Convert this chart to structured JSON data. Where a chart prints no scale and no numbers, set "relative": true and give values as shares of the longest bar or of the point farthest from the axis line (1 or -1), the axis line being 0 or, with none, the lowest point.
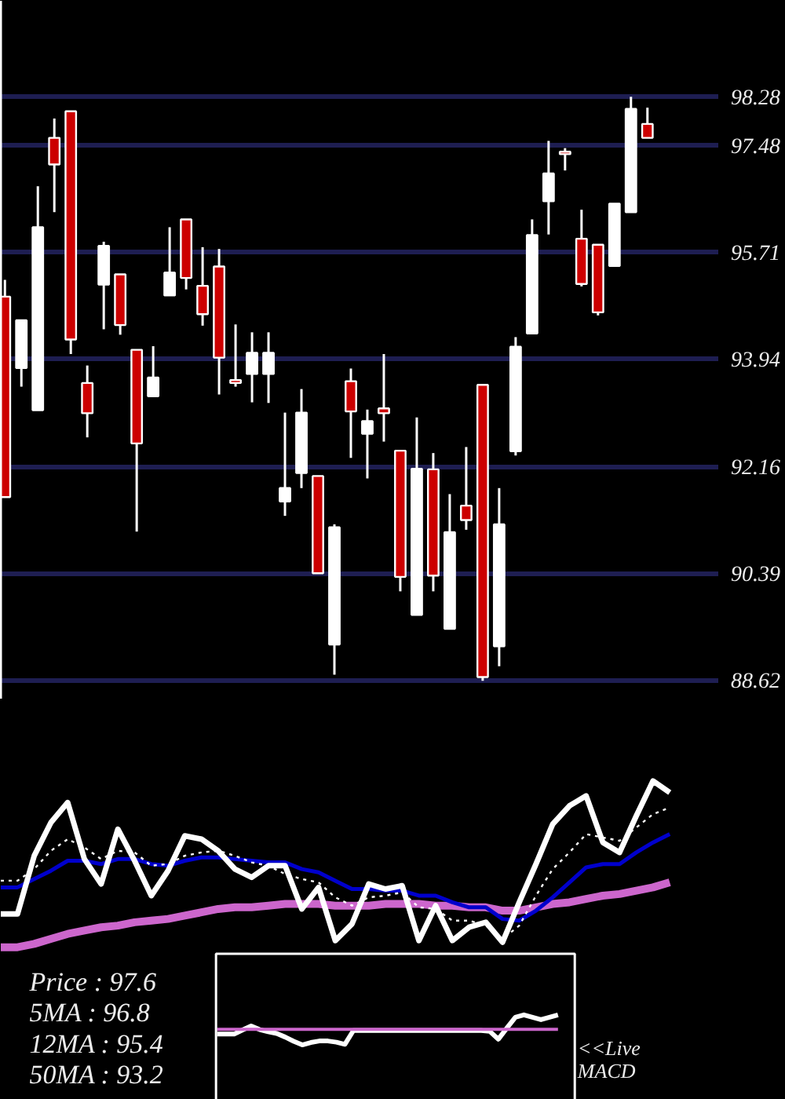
{
  "chart_data": [
    {
      "type": "candlestick",
      "categories": [
        null,
        null,
        null,
        null,
        null,
        null,
        null,
        null,
        null,
        null,
        null,
        null,
        null,
        null,
        null,
        null,
        null,
        null,
        null,
        null,
        null,
        null,
        null,
        null,
        null,
        null,
        null,
        null,
        null,
        null,
        null,
        null,
        null,
        null,
        null,
        null,
        null,
        null,
        null,
        null
      ],
      "ohlc": [
        [
          94.97,
          95.25,
          91.65,
          91.65
        ],
        [
          93.79,
          94.58,
          93.48,
          94.58
        ],
        [
          93.09,
          96.8,
          93.09,
          96.12
        ],
        [
          97.6,
          97.92,
          96.37,
          97.16
        ],
        [
          98.04,
          98.04,
          94.02,
          94.26
        ],
        [
          93.54,
          93.83,
          92.64,
          93.04
        ],
        [
          95.17,
          95.88,
          94.43,
          95.81
        ],
        [
          95.34,
          95.34,
          94.34,
          94.5
        ],
        [
          94.09,
          94.09,
          91.08,
          92.54
        ],
        [
          93.32,
          94.15,
          93.32,
          93.63
        ],
        [
          94.99,
          96.12,
          94.99,
          95.37
        ],
        [
          96.25,
          96.25,
          95.09,
          95.28
        ],
        [
          95.15,
          95.79,
          94.49,
          94.68
        ],
        [
          95.47,
          95.76,
          93.35,
          93.96
        ],
        [
          93.59,
          94.51,
          93.48,
          93.54
        ],
        [
          93.69,
          94.38,
          93.22,
          94.04
        ],
        [
          93.69,
          94.38,
          93.21,
          94.04
        ],
        [
          91.58,
          93.05,
          91.34,
          91.8
        ],
        [
          92.05,
          93.44,
          91.8,
          93.05
        ],
        [
          92.0,
          92.0,
          90.39,
          90.39
        ],
        [
          89.21,
          91.2,
          88.71,
          91.15
        ],
        [
          93.57,
          93.78,
          92.3,
          93.07
        ],
        [
          92.7,
          93.1,
          91.96,
          92.91
        ],
        [
          93.12,
          94.02,
          92.57,
          93.04
        ],
        [
          92.42,
          92.42,
          90.09,
          90.33
        ],
        [
          89.7,
          92.97,
          89.7,
          92.12
        ],
        [
          92.11,
          92.38,
          90.09,
          90.35
        ],
        [
          89.47,
          91.7,
          89.47,
          91.07
        ],
        [
          91.51,
          92.48,
          91.11,
          91.27
        ],
        [
          93.51,
          93.51,
          88.61,
          88.67
        ],
        [
          89.18,
          91.8,
          88.85,
          91.2
        ],
        [
          92.41,
          94.3,
          92.34,
          94.14
        ],
        [
          94.36,
          96.25,
          94.36,
          95.99
        ],
        [
          96.55,
          97.55,
          96.0,
          97.01
        ],
        [
          97.37,
          97.43,
          97.06,
          97.33
        ],
        [
          95.93,
          96.41,
          95.14,
          95.18
        ],
        [
          95.83,
          95.83,
          94.66,
          94.71
        ],
        [
          95.48,
          96.51,
          95.48,
          96.51
        ],
        [
          96.37,
          98.28,
          96.37,
          98.08
        ],
        [
          97.83,
          98.1,
          97.6,
          97.6
        ]
      ],
      "colors": [
        "#cc0000",
        "#ffffff",
        "#ffffff",
        "#cc0000",
        "#cc0000",
        "#cc0000",
        "#ffffff",
        "#cc0000",
        "#cc0000",
        "#ffffff",
        "#ffffff",
        "#cc0000",
        "#cc0000",
        "#cc0000",
        "#cc0000",
        "#ffffff",
        "#ffffff",
        "#ffffff",
        "#ffffff",
        "#cc0000",
        "#ffffff",
        "#cc0000",
        "#ffffff",
        "#cc0000",
        "#cc0000",
        "#ffffff",
        "#cc0000",
        "#ffffff",
        "#cc0000",
        "#cc0000",
        "#ffffff",
        "#ffffff",
        "#ffffff",
        "#ffffff",
        "#cc0000",
        "#cc0000",
        "#cc0000",
        "#ffffff",
        "#ffffff",
        "#cc0000"
      ],
      "ylim": [
        88.3,
        99.87
      ],
      "yticks": [
        88.62,
        90.39,
        92.16,
        93.94,
        95.71,
        97.48,
        98.28
      ],
      "grid": "y",
      "tick_labels": "y"
    },
    {
      "type": "line",
      "relative": true,
      "categories": [
        null,
        null,
        null,
        null,
        null,
        null,
        null,
        null,
        null,
        null,
        null,
        null,
        null,
        null,
        null,
        null,
        null,
        null,
        null,
        null,
        null,
        null,
        null,
        null,
        null,
        null,
        null,
        null,
        null,
        null,
        null,
        null,
        null,
        null,
        null,
        null,
        null,
        null,
        null,
        null,
        null
      ],
      "series": [
        {
          "color": "#ffffff",
          "values": [
            0.2,
            0.2,
            0.55,
            0.75,
            0.87,
            0.53,
            0.38,
            0.71,
            0.52,
            0.31,
            0.46,
            0.67,
            0.65,
            0.58,
            0.47,
            0.42,
            0.49,
            0.49,
            0.23,
            0.36,
            0.04,
            0.14,
            0.38,
            0.35,
            0.37,
            0.04,
            0.25,
            0.04,
            0.12,
            0.15,
            0.03,
            0.27,
            0.5,
            0.74,
            0.85,
            0.91,
            0.63,
            0.57,
            0.79,
            1.0,
            0.93
          ]
        },
        {
          "color": "#ffffff",
          "line_style": "dotted",
          "values": [
            0.4,
            0.4,
            0.47,
            0.58,
            0.65,
            0.6,
            0.53,
            0.58,
            0.57,
            0.49,
            0.5,
            0.55,
            0.57,
            0.58,
            0.55,
            0.51,
            0.49,
            0.44,
            0.41,
            0.39,
            0.3,
            0.25,
            0.3,
            0.31,
            0.33,
            0.24,
            0.23,
            0.16,
            0.16,
            0.13,
            0.05,
            0.13,
            0.31,
            0.47,
            0.57,
            0.68,
            0.66,
            0.64,
            0.72,
            0.8,
            0.84
          ]
        },
        {
          "color": "#0000cc",
          "values": [
            0.36,
            0.36,
            0.41,
            0.46,
            0.52,
            0.52,
            0.5,
            0.53,
            0.53,
            0.5,
            0.49,
            0.52,
            0.54,
            0.54,
            0.53,
            0.52,
            0.51,
            0.51,
            0.47,
            0.45,
            0.4,
            0.35,
            0.35,
            0.34,
            0.34,
            0.31,
            0.31,
            0.27,
            0.24,
            0.24,
            0.17,
            0.16,
            0.22,
            0.3,
            0.39,
            0.48,
            0.5,
            0.5,
            0.57,
            0.63,
            0.68
          ]
        },
        {
          "color": "#cc66cc",
          "values": [
            0,
            0,
            0.02,
            0.05,
            0.08,
            0.1,
            0.12,
            0.13,
            0.15,
            0.16,
            0.17,
            0.19,
            0.21,
            0.23,
            0.24,
            0.24,
            0.25,
            0.26,
            0.26,
            0.26,
            0.25,
            0.25,
            0.25,
            0.26,
            0.26,
            0.26,
            0.25,
            0.25,
            0.24,
            0.24,
            0.22,
            0.22,
            0.24,
            0.26,
            0.27,
            0.29,
            0.31,
            0.32,
            0.34,
            0.36,
            0.39
          ]
        }
      ],
      "annotations": [
        "Price  : 97.6",
        "5MA : 96.8",
        "12MA : 95.4",
        "50MA : 93.2"
      ]
    },
    {
      "type": "line",
      "relative": true,
      "categories": [
        null,
        null,
        null,
        null,
        null,
        null,
        null,
        null,
        null,
        null,
        null,
        null,
        null,
        null,
        null,
        null,
        null,
        null,
        null,
        null,
        null,
        null,
        null,
        null,
        null,
        null,
        null,
        null,
        null,
        null,
        null,
        null,
        null,
        null,
        null,
        null,
        null,
        null,
        null,
        null,
        null
      ],
      "series": [
        {
          "color": "#cc66cc",
          "values": [
            0.52,
            0.52,
            0.52,
            0.52,
            0.52,
            0.52,
            0.52,
            0.52,
            0.52,
            0.52,
            0.52,
            0.52,
            0.52,
            0.52,
            0.52,
            0.52,
            0.52,
            0.52,
            0.52,
            0.52,
            0.52,
            0.52,
            0.52,
            0.52,
            0.52,
            0.52,
            0.52,
            0.52,
            0.52,
            0.52,
            0.52,
            0.52,
            0.52,
            0.52,
            0.52,
            0.52,
            0.52,
            0.52,
            0.52,
            0.52,
            0.52
          ]
        },
        {
          "color": "#ffffff",
          "values": [
            0.36,
            0.36,
            0.36,
            0.5,
            0.63,
            0.51,
            0.44,
            0.38,
            0.26,
            0.12,
            0,
            0.08,
            0.13,
            0.13,
            0.09,
            0.02,
            0.48,
            0.48,
            0.48,
            0.48,
            0.48,
            0.48,
            0.48,
            0.48,
            0.48,
            0.48,
            0.48,
            0.48,
            0.48,
            0.48,
            0.48,
            0.48,
            0.45,
            0.19,
            0.56,
            0.92,
            1.0,
            0.92,
            0.84,
            0.92,
            1.0
          ]
        }
      ],
      "annotations": [
        "<<Live",
        "MACD"
      ]
    }
  ]
}
